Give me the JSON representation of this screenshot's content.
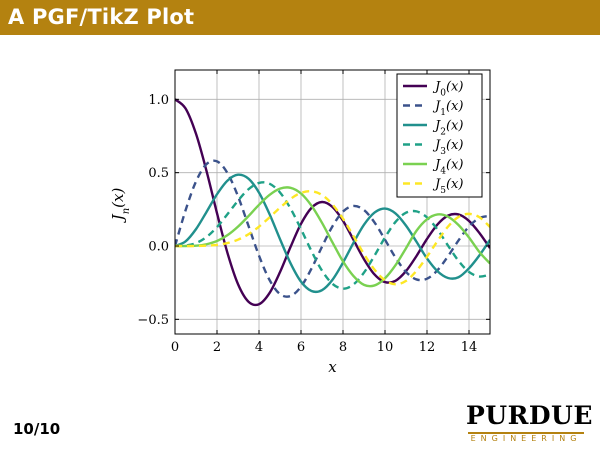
{
  "header": {
    "title": "A PGF/TikZ Plot",
    "color": "#b48210"
  },
  "footer": {
    "page_number": "10/10"
  },
  "logo": {
    "main": "Purdue",
    "sub": "ENGINEERING",
    "rule_color": "#b48210"
  },
  "chart_data": {
    "type": "line",
    "title": "",
    "xlabel": "x",
    "ylabel": "J_n(x)",
    "xlim": [
      0,
      15
    ],
    "ylim": [
      -0.6,
      1.2
    ],
    "grid": true,
    "legend_position": "top-right",
    "x_ticks": [
      0,
      2,
      4,
      6,
      8,
      10,
      12,
      14
    ],
    "x_tick_labels": [
      "0",
      "2",
      "4",
      "6",
      "8",
      "10",
      "12",
      "14"
    ],
    "y_ticks": [
      -0.5,
      0.0,
      0.5,
      1.0
    ],
    "y_tick_labels": [
      "−0.5",
      "0.0",
      "0.5",
      "1.0"
    ],
    "x": [
      0,
      0.5,
      1,
      1.5,
      2,
      2.5,
      3,
      3.5,
      4,
      4.5,
      5,
      5.5,
      6,
      6.5,
      7,
      7.5,
      8,
      8.5,
      9,
      9.5,
      10,
      10.5,
      11,
      11.5,
      12,
      12.5,
      13,
      13.5,
      14,
      14.5,
      15
    ],
    "series": [
      {
        "name": "J_0(x)",
        "legend_base": "J",
        "legend_sub": "0",
        "legend_arg": "(x)",
        "color": "#440154",
        "dash": "solid",
        "values": [
          1.0,
          0.938,
          0.765,
          0.512,
          0.224,
          -0.048,
          -0.26,
          -0.38,
          -0.397,
          -0.321,
          -0.178,
          -0.007,
          0.151,
          0.26,
          0.3,
          0.266,
          0.172,
          0.042,
          -0.09,
          -0.194,
          -0.246,
          -0.237,
          -0.171,
          -0.068,
          0.048,
          0.147,
          0.207,
          0.215,
          0.171,
          0.088,
          -0.014
        ]
      },
      {
        "name": "J_1(x)",
        "legend_base": "J",
        "legend_sub": "1",
        "legend_arg": "(x)",
        "color": "#3b528b",
        "dash": "dashed",
        "values": [
          0.0,
          0.242,
          0.44,
          0.558,
          0.577,
          0.497,
          0.339,
          0.137,
          -0.066,
          -0.231,
          -0.328,
          -0.341,
          -0.277,
          -0.154,
          -0.005,
          0.135,
          0.235,
          0.273,
          0.245,
          0.161,
          0.043,
          -0.079,
          -0.177,
          -0.228,
          -0.223,
          -0.165,
          -0.07,
          0.038,
          0.133,
          0.191,
          0.205
        ]
      },
      {
        "name": "J_2(x)",
        "legend_base": "J",
        "legend_sub": "2",
        "legend_arg": "(x)",
        "color": "#21908d",
        "dash": "solid",
        "values": [
          0.0,
          0.031,
          0.115,
          0.232,
          0.353,
          0.446,
          0.486,
          0.459,
          0.364,
          0.218,
          0.047,
          -0.117,
          -0.243,
          -0.307,
          -0.301,
          -0.23,
          -0.113,
          0.022,
          0.145,
          0.228,
          0.255,
          0.222,
          0.139,
          0.029,
          -0.085,
          -0.172,
          -0.218,
          -0.213,
          -0.152,
          -0.063,
          0.042
        ]
      },
      {
        "name": "J_3(x)",
        "legend_base": "J",
        "legend_sub": "3",
        "legend_arg": "(x)",
        "color": "#1fa187",
        "dash": "dashed",
        "values": [
          0.0,
          0.003,
          0.02,
          0.061,
          0.129,
          0.217,
          0.309,
          0.387,
          0.43,
          0.425,
          0.365,
          0.256,
          0.115,
          -0.035,
          -0.168,
          -0.258,
          -0.291,
          -0.262,
          -0.181,
          -0.066,
          0.058,
          0.164,
          0.227,
          0.236,
          0.195,
          0.112,
          0.003,
          -0.101,
          -0.177,
          -0.208,
          -0.194
        ]
      },
      {
        "name": "J_4(x)",
        "legend_base": "J",
        "legend_sub": "4",
        "legend_arg": "(x)",
        "color": "#7ad151",
        "dash": "solid",
        "values": [
          0.0,
          0.0,
          0.002,
          0.012,
          0.034,
          0.074,
          0.132,
          0.204,
          0.281,
          0.348,
          0.391,
          0.397,
          0.358,
          0.275,
          0.158,
          0.024,
          -0.105,
          -0.205,
          -0.265,
          -0.269,
          -0.22,
          -0.131,
          -0.015,
          0.104,
          0.182,
          0.215,
          0.2,
          0.143,
          0.058,
          -0.042,
          -0.119
        ]
      },
      {
        "name": "J_5(x)",
        "legend_base": "J",
        "legend_sub": "5",
        "legend_arg": "(x)",
        "color": "#fde725",
        "dash": "dashed",
        "values": [
          0.0,
          0.0,
          0.0,
          0.002,
          0.007,
          0.02,
          0.043,
          0.08,
          0.132,
          0.195,
          0.261,
          0.321,
          0.362,
          0.373,
          0.348,
          0.283,
          0.186,
          0.067,
          -0.055,
          -0.161,
          -0.234,
          -0.261,
          -0.238,
          -0.169,
          -0.073,
          0.034,
          0.132,
          0.198,
          0.219,
          0.196,
          0.13
        ]
      }
    ]
  }
}
